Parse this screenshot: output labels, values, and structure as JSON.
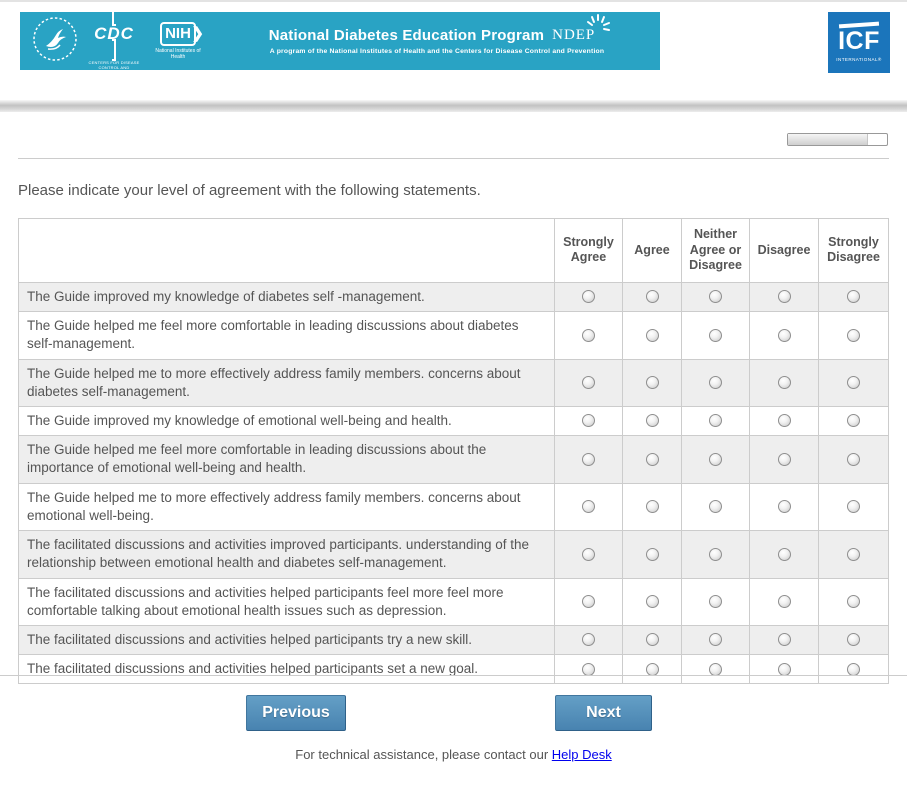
{
  "header": {
    "hhs_logo": "hhs-eagle-seal",
    "cdc": {
      "title": "CDC",
      "subtitle": "CENTERS FOR DISEASE CONTROL AND PREVENTION"
    },
    "nih": {
      "title": "NIH",
      "arrow": "❯",
      "subtitle": "National Institutes of Health"
    },
    "banner_title": "National Diabetes Education Program",
    "ndep_logo": "NDEP",
    "banner_subtitle": "A program of the National Institutes of Health and the Centers for Disease Control and Prevention",
    "icf": {
      "title": "ICF",
      "subtitle": "INTERNATIONAL®"
    }
  },
  "colors": {
    "banner_teal": "#29a3c4",
    "icf_blue": "#1b75bb",
    "button_blue": "#4883b0",
    "row_alt_gray": "#eeeeee",
    "border_gray": "#cccccc"
  },
  "progress": {
    "percent": 81
  },
  "question": "Please indicate your level of agreement with the following statements.",
  "table": {
    "columns": [
      "Strongly Agree",
      "Agree",
      "Neither Agree or Disagree",
      "Disagree",
      "Strongly Disagree"
    ],
    "rows": [
      "The Guide improved my knowledge of diabetes self -management.",
      "The Guide helped me feel more comfortable in leading discussions about diabetes self-management.",
      "The Guide helped me to more effectively address family members. concerns about diabetes self-management.",
      "The Guide improved my knowledge of emotional well-being and health.",
      "The Guide helped me feel more comfortable in leading discussions about the importance of emotional well-being and health.",
      "The Guide helped me to more effectively address family members. concerns about emotional well-being.",
      "The facilitated discussions and activities improved participants. understanding of the relationship between emotional health and diabetes self-management.",
      "The facilitated discussions and activities helped participants feel more feel more comfortable talking about emotional health issues such as depression.",
      "The facilitated discussions and activities helped participants try a new skill.",
      "The facilitated discussions and activities helped participants set a new goal."
    ]
  },
  "buttons": {
    "previous": "Previous",
    "next": "Next"
  },
  "footer": {
    "text": "For technical assistance, please contact our ",
    "link": "Help Desk"
  }
}
